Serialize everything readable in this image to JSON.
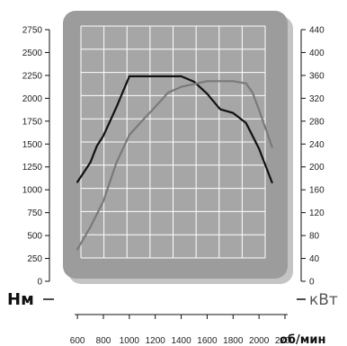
{
  "chart_data": {
    "type": "line",
    "x_ticks": [
      600,
      800,
      1000,
      1200,
      1400,
      1600,
      1800,
      2000,
      2200
    ],
    "xlim": [
      500,
      2300
    ],
    "xlabel": "об/мин",
    "y_left": {
      "label": "Нм",
      "ticks": [
        0,
        250,
        500,
        750,
        1000,
        1250,
        1500,
        1750,
        2000,
        2250,
        2500,
        2750
      ],
      "ylim": [
        0,
        2750
      ]
    },
    "y_right": {
      "label": "кВт",
      "ticks": [
        0,
        40,
        80,
        120,
        160,
        200,
        240,
        280,
        320,
        360,
        400,
        440
      ],
      "ylim": [
        0,
        440
      ]
    },
    "grid": true,
    "series": [
      {
        "axis": "left",
        "color": "#111111",
        "x": [
          600,
          700,
          750,
          800,
          900,
          1000,
          1100,
          1200,
          1300,
          1400,
          1500,
          1600,
          1700,
          1800,
          1900,
          2000,
          2100
        ],
        "values": [
          1085,
          1300,
          1480,
          1590,
          1900,
          2240,
          2240,
          2240,
          2240,
          2240,
          2180,
          2050,
          1880,
          1840,
          1730,
          1450,
          1080
        ]
      },
      {
        "axis": "right",
        "color": "#7a7a7a",
        "x": [
          600,
          700,
          800,
          900,
          1000,
          1100,
          1200,
          1300,
          1400,
          1500,
          1600,
          1700,
          1800,
          1900,
          1950,
          2000,
          2100
        ],
        "values": [
          56,
          95,
          140,
          207,
          256,
          281,
          305,
          330,
          340,
          345,
          350,
          350,
          350,
          346,
          330,
          300,
          235
        ]
      }
    ]
  }
}
